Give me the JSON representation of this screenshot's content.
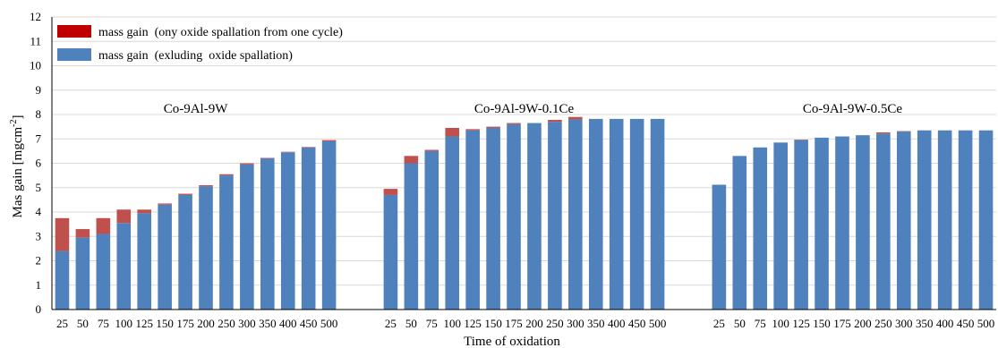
{
  "chart_data": {
    "type": "bar",
    "stacked": true,
    "xlabel": "Time of oxidation",
    "ylabel": "Mas gain [mgcm",
    "ylabel_superscript": "-2",
    "ylabel_close": "]",
    "ylim": [
      0,
      12
    ],
    "yticks": [
      0,
      1,
      2,
      3,
      4,
      5,
      6,
      7,
      8,
      9,
      10,
      11,
      12
    ],
    "grid": true,
    "legend_position": "top-left",
    "series": [
      {
        "name": "mass gain  (ony oxide spallation from one cycle)",
        "color": "#c0504d",
        "legend_color": "#c00000"
      },
      {
        "name": "mass gain  (exluding  oxide spallation)",
        "color": "#4f81bd"
      }
    ],
    "groups": [
      {
        "label": "Co-9Al-9W",
        "categories": [
          "25",
          "50",
          "75",
          "100",
          "125",
          "150",
          "175",
          "200",
          "250",
          "300",
          "350",
          "400",
          "450",
          "500"
        ],
        "base": [
          2.4,
          2.95,
          3.1,
          3.55,
          3.95,
          4.3,
          4.7,
          5.05,
          5.5,
          5.95,
          6.2,
          6.45,
          6.65,
          6.9
        ],
        "spall": [
          1.35,
          0.35,
          0.65,
          0.55,
          0.15,
          0.05,
          0.05,
          0.05,
          0.05,
          0.05,
          0.02,
          0.02,
          0.02,
          0.05
        ]
      },
      {
        "label": "Co-9Al-9W-0.1Ce",
        "categories": [
          "25",
          "50",
          "75",
          "100",
          "125",
          "150",
          "175",
          "200",
          "250",
          "300",
          "350",
          "400",
          "450",
          "500"
        ],
        "base": [
          4.7,
          6.0,
          6.5,
          7.1,
          7.35,
          7.45,
          7.6,
          7.65,
          7.7,
          7.8,
          7.82,
          7.82,
          7.82,
          7.82
        ],
        "spall": [
          0.25,
          0.3,
          0.05,
          0.35,
          0.05,
          0.05,
          0.05,
          0.0,
          0.08,
          0.1,
          0.0,
          0.0,
          0.0,
          0.0
        ]
      },
      {
        "label": "Co-9Al-9W-0.5Ce",
        "categories": [
          "25",
          "50",
          "75",
          "100",
          "125",
          "150",
          "175",
          "200",
          "250",
          "300",
          "350",
          "400",
          "450",
          "500"
        ],
        "base": [
          5.12,
          6.3,
          6.65,
          6.85,
          6.95,
          7.05,
          7.1,
          7.15,
          7.22,
          7.3,
          7.35,
          7.35,
          7.35,
          7.35
        ],
        "spall": [
          0.0,
          0.0,
          0.0,
          0.0,
          0.02,
          0.0,
          0.0,
          0.0,
          0.05,
          0.02,
          0.0,
          0.0,
          0.0,
          0.0
        ]
      }
    ]
  }
}
